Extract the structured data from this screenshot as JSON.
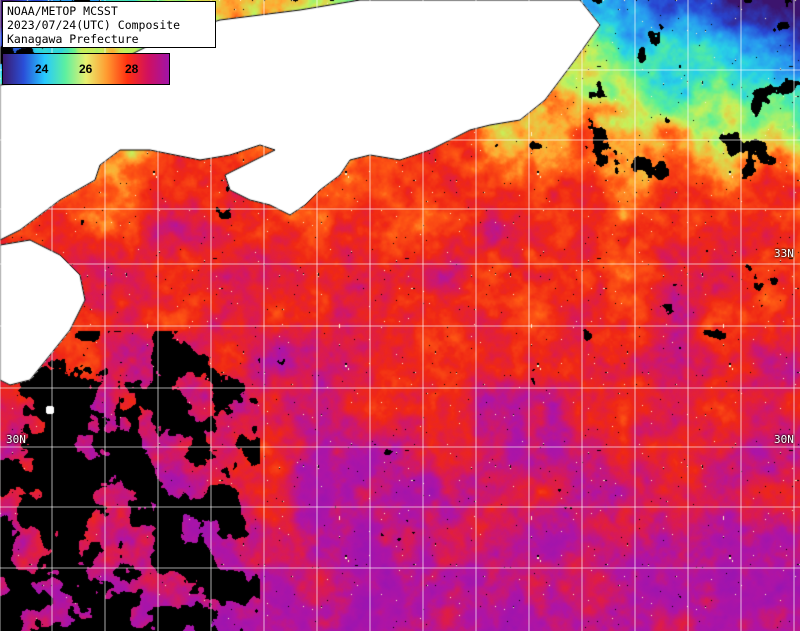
{
  "map": {
    "title_lines": [
      "NOAA/METOP MCSST",
      "2023/07/24(UTC) Composite",
      "Kanagawa Prefecture"
    ],
    "legend": {
      "ticks": [
        "24",
        "26",
        "28"
      ],
      "gradient": [
        "#3a1a6e",
        "#2a4fd8",
        "#27c8ff",
        "#5cf0a0",
        "#e8f070",
        "#ff9a30",
        "#ff3010",
        "#d01060",
        "#a014a8"
      ]
    },
    "lat_labels": {
      "n33_right": "33N",
      "n30_left": "30N",
      "n30_right": "30N"
    },
    "colors": {
      "land": "#ffffff",
      "cloud": "#000000",
      "grid": "#ffffff",
      "warm_sea": "#ff3a10",
      "hot_sea": "#c8109a",
      "cool_sea": "#70f0a0"
    }
  }
}
